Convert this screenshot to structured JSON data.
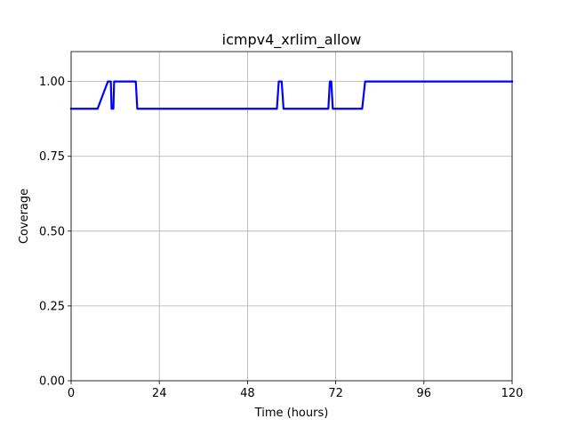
{
  "chart_data": {
    "type": "line",
    "title": "icmpv4_xrlim_allow",
    "xlabel": "Time (hours)",
    "ylabel": "Coverage",
    "xlim": [
      0,
      120
    ],
    "ylim": [
      0,
      1.1
    ],
    "xticks": [
      0,
      24,
      48,
      72,
      96,
      120
    ],
    "xtick_labels": [
      "0",
      "24",
      "48",
      "72",
      "96",
      "120"
    ],
    "yticks": [
      0,
      0.25,
      0.5,
      0.75,
      1.0
    ],
    "ytick_labels": [
      "0.00",
      "0.25",
      "0.50",
      "0.75",
      "1.00"
    ],
    "grid": true,
    "series": [
      {
        "color": "#0000ff",
        "x": [
          0,
          7.2,
          10.0,
          10.8,
          11.0,
          11.5,
          11.7,
          12.0,
          17.6,
          18.0,
          56.0,
          56.5,
          57.3,
          57.8,
          70.0,
          70.4,
          70.8,
          71.2,
          79.2,
          80.0,
          120
        ],
        "y": [
          0.909,
          0.909,
          1.0,
          1.0,
          0.909,
          0.909,
          1.0,
          1.0,
          1.0,
          0.909,
          0.909,
          1.0,
          1.0,
          0.909,
          0.909,
          1.0,
          1.0,
          0.909,
          0.909,
          1.0,
          1.0
        ]
      }
    ]
  }
}
